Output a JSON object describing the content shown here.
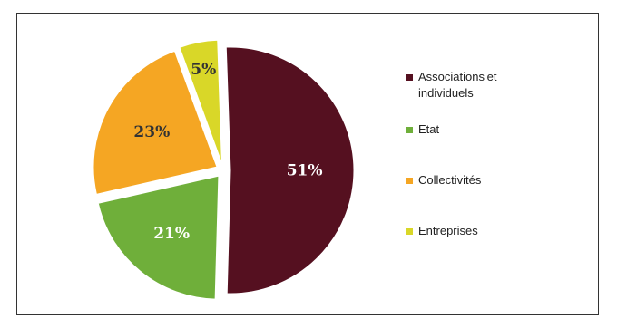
{
  "chart_data": {
    "type": "pie",
    "slices": [
      {
        "name": "Associations et individuels",
        "value": 51,
        "label": "51%",
        "color": "#551020",
        "text_color": "#ffffff"
      },
      {
        "name": "Etat",
        "value": 21,
        "label": "21%",
        "color": "#6FAF3A",
        "text_color": "#ffffff"
      },
      {
        "name": "Collectivités",
        "value": 23,
        "label": "23%",
        "color": "#F5A623",
        "text_color": "#333333"
      },
      {
        "name": "Entreprises",
        "value": 5,
        "label": "5%",
        "color": "#D9D728",
        "text_color": "#333333"
      }
    ],
    "legend_position": "right",
    "exploded": true
  },
  "legend": {
    "items": [
      {
        "label": "Associations et individuels",
        "color": "#551020"
      },
      {
        "label": "Etat",
        "color": "#6FAF3A"
      },
      {
        "label": "Collectivités",
        "color": "#F5A623"
      },
      {
        "label": "Entreprises",
        "color": "#D9D728"
      }
    ]
  }
}
